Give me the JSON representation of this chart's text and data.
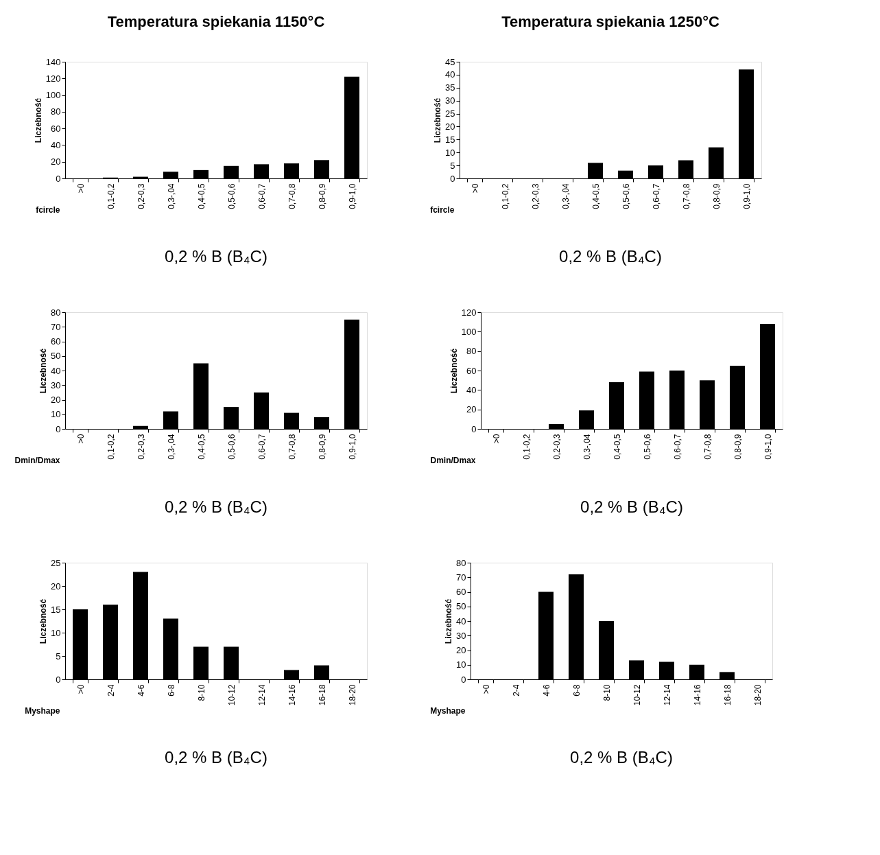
{
  "chart_data": [
    {
      "type": "bar",
      "title": "Temperatura spiekania 1150°C",
      "xlabel": "fcircle",
      "ylabel": "Liczebność",
      "categories": [
        ">0",
        "0,1-0,2",
        "0,2-0,3",
        "0,3-,04",
        "0,4-0,5",
        "0,5-0,6",
        "0,6-0,7",
        "0,7-0,8",
        "0,8-0,9",
        "0,9-1,0"
      ],
      "values": [
        0,
        1,
        2,
        8,
        10,
        15,
        17,
        18,
        22,
        122
      ],
      "color": "#000000",
      "ylim": [
        0,
        140
      ],
      "yticks": [
        0,
        20,
        40,
        60,
        80,
        100,
        120,
        140
      ],
      "annotations": [
        "0,2 % B (B₄C)"
      ]
    },
    {
      "type": "bar",
      "title": "Temperatura spiekania 1250°C",
      "xlabel": "fcircle",
      "ylabel": "Liczebność",
      "categories": [
        ">0",
        "0,1-0,2",
        "0,2-0,3",
        "0,3-,04",
        "0,4-0,5",
        "0,5-0,6",
        "0,6-0,7",
        "0,7-0,8",
        "0,8-0,9",
        "0,9-1,0"
      ],
      "values": [
        0,
        0,
        0,
        0,
        6,
        3,
        5,
        7,
        12,
        42
      ],
      "color": "#000000",
      "ylim": [
        0,
        45
      ],
      "yticks": [
        0,
        5,
        10,
        15,
        20,
        25,
        30,
        35,
        40,
        45
      ],
      "annotations": [
        "0,2 % B (B₄C)"
      ]
    },
    {
      "type": "bar",
      "xlabel": "Dmin/Dmax",
      "ylabel": "Liczebność",
      "categories": [
        ">0",
        "0,1-0,2",
        "0,2-0,3",
        "0,3-,04",
        "0,4-0,5",
        "0,5-0,6",
        "0,6-0,7",
        "0,7-0,8",
        "0,8-0,9",
        "0,9-1,0"
      ],
      "values": [
        0,
        0,
        2,
        12,
        45,
        15,
        25,
        11,
        8,
        75
      ],
      "color": "#000000",
      "ylim": [
        0,
        80
      ],
      "yticks": [
        0,
        10,
        20,
        30,
        40,
        50,
        60,
        70,
        80
      ],
      "annotations": [
        "0,2 % B (B₄C)"
      ]
    },
    {
      "type": "bar",
      "xlabel": "Dmin/Dmax",
      "ylabel": "Liczebność",
      "categories": [
        ">0",
        "0,1-0,2",
        "0,2-0,3",
        "0,3-,04",
        "0,4-0,5",
        "0,5-0,6",
        "0,6-0,7",
        "0,7-0,8",
        "0,8-0,9",
        "0,9-1,0"
      ],
      "values": [
        0,
        0,
        5,
        19,
        48,
        59,
        60,
        50,
        65,
        108
      ],
      "color": "#000000",
      "ylim": [
        0,
        120
      ],
      "yticks": [
        0,
        20,
        40,
        60,
        80,
        100,
        120
      ],
      "annotations": [
        "0,2 % B (B₄C)"
      ]
    },
    {
      "type": "bar",
      "xlabel": "Myshape",
      "ylabel": "Liczebność",
      "categories": [
        ">0",
        "2-4",
        "4-6",
        "6-8",
        "8-10",
        "10-12",
        "12-14",
        "14-16",
        "16-18",
        "18-20"
      ],
      "values": [
        15,
        16,
        23,
        13,
        7,
        7,
        0,
        2,
        3,
        0
      ],
      "color": "#000000",
      "ylim": [
        0,
        25
      ],
      "yticks": [
        0,
        5,
        10,
        15,
        20,
        25
      ],
      "annotations": [
        "0,2 % B (B₄C)"
      ]
    },
    {
      "type": "bar",
      "xlabel": "Myshape",
      "ylabel": "Liczebność",
      "categories": [
        ">0",
        "2-4",
        "4-6",
        "6-8",
        "8-10",
        "10-12",
        "12-14",
        "14-16",
        "16-18",
        "18-20"
      ],
      "values": [
        0,
        0,
        60,
        72,
        40,
        13,
        12,
        10,
        5,
        0
      ],
      "color": "#000000",
      "ylim": [
        0,
        80
      ],
      "yticks": [
        0,
        10,
        20,
        30,
        40,
        50,
        60,
        70,
        80
      ],
      "annotations": [
        "0,2 % B (B₄C)"
      ]
    }
  ]
}
